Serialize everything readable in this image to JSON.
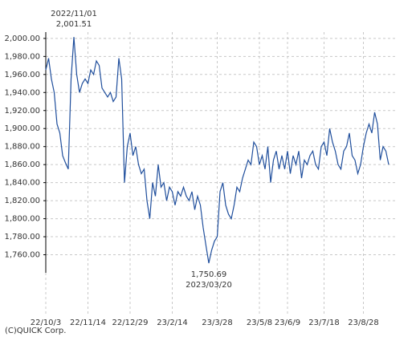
{
  "chart_data": {
    "type": "line",
    "categories": [
      null,
      null,
      null,
      null,
      null,
      null,
      null,
      null,
      null,
      null,
      null,
      null,
      null,
      null,
      null,
      "22/11/14",
      null,
      null,
      null,
      null,
      null,
      null,
      null,
      null,
      null,
      null,
      null,
      null,
      null,
      null,
      "22/12/29",
      null,
      null,
      null,
      null,
      null,
      null,
      null,
      null,
      null,
      null,
      null,
      null,
      null,
      null,
      "23/2/14",
      null,
      null,
      null,
      null,
      null,
      null,
      null,
      null,
      null,
      null,
      null,
      null,
      null,
      null,
      null,
      "23/3/28",
      null,
      null,
      null,
      null,
      null,
      null,
      null,
      null,
      null,
      null,
      null,
      null,
      null,
      null,
      "23/5/8",
      null,
      null,
      null,
      null,
      null,
      null,
      null,
      null,
      null,
      "23/6/9",
      null,
      null,
      null,
      null,
      null,
      null,
      null,
      null,
      null,
      null,
      null,
      null,
      "23/7/18",
      null,
      null,
      null,
      null,
      null,
      null,
      null,
      null,
      null,
      null,
      null,
      null,
      null,
      "23/8/28",
      null,
      null,
      null,
      null,
      null,
      null,
      null,
      null,
      null
    ],
    "first_label": "22/10/3",
    "series": [
      {
        "color": "#1f4e9c",
        "values": [
          1965,
          1978,
          1955,
          1940,
          1905,
          1895,
          1870,
          1862,
          1855,
          1955,
          2001.51,
          1960,
          1940,
          1950,
          1955,
          1950,
          1965,
          1960,
          1975,
          1970,
          1945,
          1940,
          1935,
          1940,
          1930,
          1935,
          1978,
          1955,
          1840,
          1880,
          1895,
          1870,
          1880,
          1860,
          1850,
          1855,
          1820,
          1800,
          1840,
          1825,
          1860,
          1835,
          1840,
          1820,
          1835,
          1830,
          1815,
          1830,
          1825,
          1835,
          1825,
          1820,
          1830,
          1810,
          1825,
          1815,
          1790,
          1770,
          1750.69,
          1765,
          1775,
          1780,
          1830,
          1840,
          1815,
          1805,
          1800,
          1815,
          1835,
          1830,
          1845,
          1855,
          1865,
          1860,
          1885,
          1880,
          1860,
          1870,
          1855,
          1880,
          1840,
          1865,
          1875,
          1855,
          1870,
          1855,
          1875,
          1850,
          1870,
          1860,
          1875,
          1845,
          1865,
          1860,
          1870,
          1875,
          1860,
          1855,
          1880,
          1885,
          1870,
          1900,
          1885,
          1875,
          1860,
          1855,
          1875,
          1880,
          1895,
          1870,
          1865,
          1850,
          1860,
          1880,
          1895,
          1905,
          1895,
          1918,
          1905,
          1865,
          1880,
          1875,
          1860
        ]
      }
    ],
    "ylim": [
      1740,
      2007
    ],
    "yticks": [
      {
        "value": 1760,
        "label": "1,760.00"
      },
      {
        "value": 1780,
        "label": "1,780.00"
      },
      {
        "value": 1800,
        "label": "1,800.00"
      },
      {
        "value": 1820,
        "label": "1,820.00"
      },
      {
        "value": 1840,
        "label": "1,840.00"
      },
      {
        "value": 1860,
        "label": "1,860.00"
      },
      {
        "value": 1880,
        "label": "1,880.00"
      },
      {
        "value": 1900,
        "label": "1,900.00"
      },
      {
        "value": 1920,
        "label": "1,920.00"
      },
      {
        "value": 1940,
        "label": "1,940.00"
      },
      {
        "value": 1960,
        "label": "1,960.00"
      },
      {
        "value": 1980,
        "label": "1,980.00"
      },
      {
        "value": 2000,
        "label": "2,000.00"
      }
    ],
    "grid": true,
    "max_annotation": [
      "2022/11/01",
      "2,001.51"
    ],
    "min_annotation": [
      "1,750.69",
      "2023/03/20"
    ],
    "credit": "(C)QUICK Corp."
  }
}
